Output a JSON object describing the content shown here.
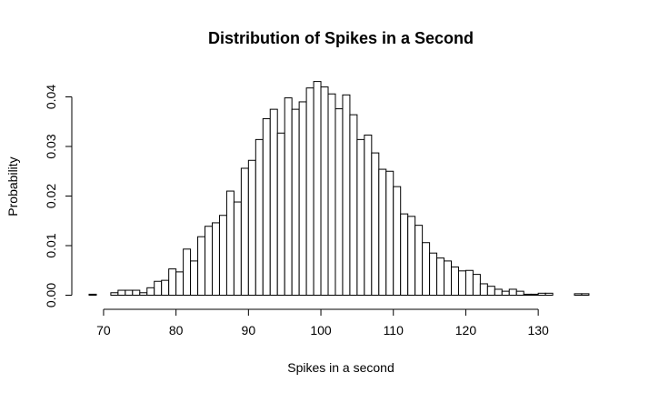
{
  "chart_data": {
    "type": "bar",
    "title": "Distribution of Spikes in a Second",
    "xlabel": "Spikes in a second",
    "ylabel": "Probability",
    "bin_width": 1,
    "xlim": [
      68,
      137
    ],
    "ylim": [
      0,
      0.044
    ],
    "x_ticks": [
      70,
      80,
      90,
      100,
      110,
      120,
      130
    ],
    "y_ticks": [
      "0.00",
      "0.01",
      "0.02",
      "0.03",
      "0.04"
    ],
    "bins": [
      68,
      69,
      70,
      71,
      72,
      73,
      74,
      75,
      76,
      77,
      78,
      79,
      80,
      81,
      82,
      83,
      84,
      85,
      86,
      87,
      88,
      89,
      90,
      91,
      92,
      93,
      94,
      95,
      96,
      97,
      98,
      99,
      100,
      101,
      102,
      103,
      104,
      105,
      106,
      107,
      108,
      109,
      110,
      111,
      112,
      113,
      114,
      115,
      116,
      117,
      118,
      119,
      120,
      121,
      122,
      123,
      124,
      125,
      126,
      127,
      128,
      129,
      130,
      131,
      132,
      133,
      134,
      135,
      136
    ],
    "values": [
      0.0002,
      0,
      0,
      0.0005,
      0.001,
      0.001,
      0.001,
      0.0005,
      0.0015,
      0.0028,
      0.003,
      0.0053,
      0.0047,
      0.0093,
      0.0069,
      0.0118,
      0.0139,
      0.0146,
      0.0161,
      0.021,
      0.0188,
      0.0256,
      0.0272,
      0.0314,
      0.0356,
      0.0375,
      0.0327,
      0.0398,
      0.0375,
      0.039,
      0.0418,
      0.0431,
      0.042,
      0.0406,
      0.0376,
      0.0404,
      0.0364,
      0.0314,
      0.0323,
      0.0287,
      0.0254,
      0.025,
      0.0219,
      0.0164,
      0.0159,
      0.0141,
      0.0106,
      0.0085,
      0.0075,
      0.0069,
      0.0057,
      0.0049,
      0.005,
      0.0042,
      0.0023,
      0.0018,
      0.0012,
      0.0008,
      0.0012,
      0.0008,
      0.0002,
      0.0002,
      0.0004,
      0.0004,
      0,
      0,
      0,
      0.0003,
      0.0003
    ]
  }
}
